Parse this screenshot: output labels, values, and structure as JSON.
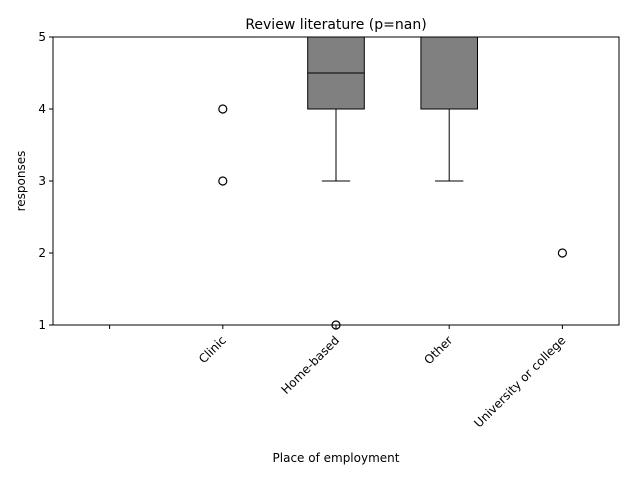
{
  "chart_data": {
    "type": "box",
    "title": "Review literature (p=nan)",
    "xlabel": "Place of employment",
    "ylabel": "responses",
    "ylim": [
      1,
      5
    ],
    "yticks": [
      1,
      2,
      3,
      4,
      5
    ],
    "categories": [
      "",
      "Clinic",
      "Home-based",
      "Other",
      "University or college"
    ],
    "boxes": [
      {
        "category": "",
        "empty": true
      },
      {
        "category": "Clinic",
        "q1": 5,
        "median": 5,
        "q3": 5,
        "whislo": 5,
        "whishi": 5,
        "fliers": [
          4,
          3
        ]
      },
      {
        "category": "Home-based",
        "q1": 4,
        "median": 4.5,
        "q3": 5,
        "whislo": 3,
        "whishi": 5,
        "fliers": [
          1
        ]
      },
      {
        "category": "Other",
        "q1": 4,
        "median": 5,
        "q3": 5,
        "whislo": 3,
        "whishi": 5,
        "fliers": []
      },
      {
        "category": "University or college",
        "q1": 5,
        "median": 5,
        "q3": 5,
        "whislo": 5,
        "whishi": 5,
        "fliers": [
          2
        ]
      }
    ],
    "box_color": "#808080",
    "grid": false,
    "legend": "none"
  }
}
